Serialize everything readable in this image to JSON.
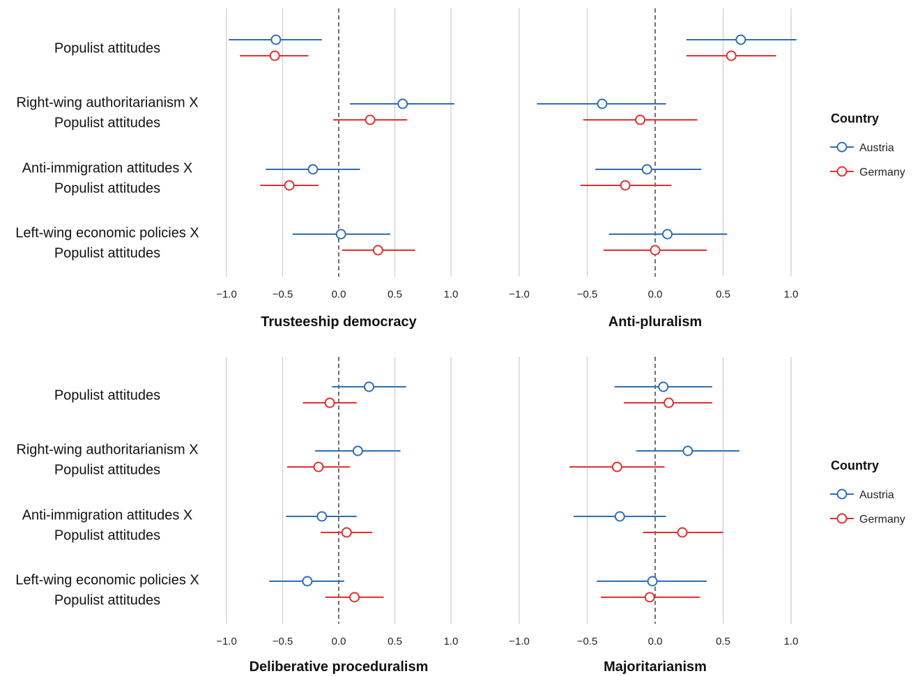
{
  "chart_data": {
    "type": "scatter",
    "subtype": "coefficient plot with confidence intervals",
    "row_labels": [
      [
        "Populist attitudes"
      ],
      [
        "Right-wing authoritarianism X",
        "Populist attitudes"
      ],
      [
        "Anti-immigration attitudes X",
        "Populist attitudes"
      ],
      [
        "Left-wing economic policies X",
        "Populist attitudes"
      ]
    ],
    "xlim": [
      -1.0,
      1.0
    ],
    "xticks": [
      -1.0,
      -0.5,
      0.0,
      0.5,
      1.0
    ],
    "xtick_labels": [
      "−1.0",
      "−0.5",
      "0.0",
      "0.5",
      "1.0"
    ],
    "reference_line": 0,
    "grid": true,
    "legend": {
      "title": "Country",
      "placement": "right",
      "entries": [
        {
          "name": "Austria",
          "color": "#2f6db5"
        },
        {
          "name": "Germany",
          "color": "#e03030"
        }
      ]
    },
    "panels": [
      {
        "title": "Trusteeship democracy",
        "series": [
          {
            "name": "Austria",
            "estimate": [
              -0.56,
              0.57,
              -0.23,
              0.02
            ],
            "lower": [
              -0.98,
              0.1,
              -0.65,
              -0.41
            ],
            "upper": [
              -0.15,
              1.03,
              0.19,
              0.46
            ]
          },
          {
            "name": "Germany",
            "estimate": [
              -0.57,
              0.28,
              -0.44,
              0.35
            ],
            "lower": [
              -0.88,
              -0.05,
              -0.7,
              0.03
            ],
            "upper": [
              -0.27,
              0.61,
              -0.18,
              0.68
            ]
          }
        ]
      },
      {
        "title": "Anti-pluralism",
        "series": [
          {
            "name": "Austria",
            "estimate": [
              0.63,
              -0.39,
              -0.06,
              0.09
            ],
            "lower": [
              0.23,
              -0.87,
              -0.44,
              -0.34
            ],
            "upper": [
              1.04,
              0.08,
              0.34,
              0.53
            ]
          },
          {
            "name": "Germany",
            "estimate": [
              0.56,
              -0.11,
              -0.22,
              0.0
            ],
            "lower": [
              0.23,
              -0.53,
              -0.55,
              -0.38
            ],
            "upper": [
              0.89,
              0.31,
              0.12,
              0.38
            ]
          }
        ]
      },
      {
        "title": "Deliberative proceduralism",
        "series": [
          {
            "name": "Austria",
            "estimate": [
              0.27,
              0.17,
              -0.15,
              -0.28
            ],
            "lower": [
              -0.06,
              -0.21,
              -0.47,
              -0.62
            ],
            "upper": [
              0.6,
              0.55,
              0.16,
              0.05
            ]
          },
          {
            "name": "Germany",
            "estimate": [
              -0.08,
              -0.18,
              0.07,
              0.14
            ],
            "lower": [
              -0.32,
              -0.46,
              -0.16,
              -0.12
            ],
            "upper": [
              0.16,
              0.1,
              0.3,
              0.4
            ]
          }
        ]
      },
      {
        "title": "Majoritarianism",
        "series": [
          {
            "name": "Austria",
            "estimate": [
              0.06,
              0.24,
              -0.26,
              -0.02
            ],
            "lower": [
              -0.3,
              -0.14,
              -0.6,
              -0.43
            ],
            "upper": [
              0.42,
              0.62,
              0.08,
              0.38
            ]
          },
          {
            "name": "Germany",
            "estimate": [
              0.1,
              -0.28,
              0.2,
              -0.04
            ],
            "lower": [
              -0.23,
              -0.63,
              -0.09,
              -0.4
            ],
            "upper": [
              0.42,
              0.07,
              0.5,
              0.33
            ]
          }
        ]
      }
    ]
  }
}
